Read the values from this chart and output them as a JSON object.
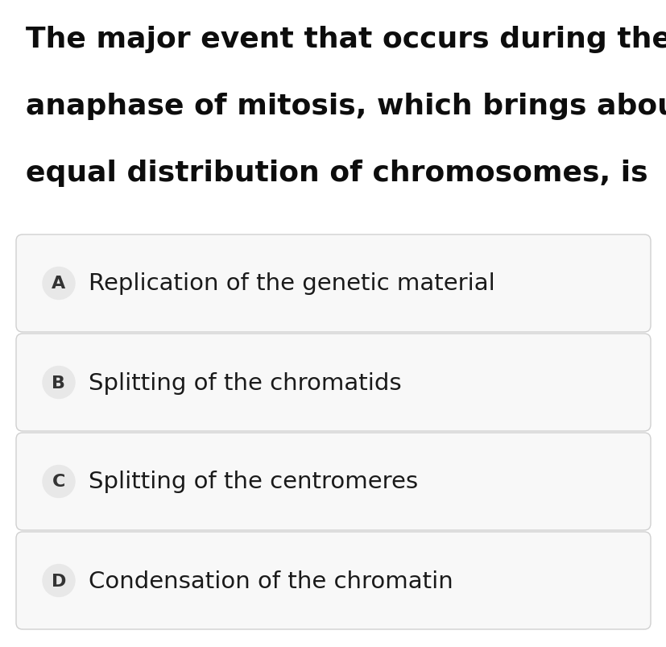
{
  "question_lines": [
    "The major event that occurs during the",
    "anaphase of mitosis, which brings about the",
    "equal distribution of chromosomes, is"
  ],
  "options": [
    {
      "letter": "A",
      "text": "Replication of the genetic material"
    },
    {
      "letter": "B",
      "text": "Splitting of the chromatids"
    },
    {
      "letter": "C",
      "text": "Splitting of the centromeres"
    },
    {
      "letter": "D",
      "text": "Condensation of the chromatin"
    }
  ],
  "background_color": "#ffffff",
  "question_font_size": 26,
  "option_font_size": 21,
  "letter_font_size": 16,
  "question_text_color": "#0d0d0d",
  "option_text_color": "#1a1a1a",
  "letter_bg_color": "#e8e8e8",
  "letter_text_color": "#333333",
  "box_edge_color": "#d0d0d0",
  "box_face_color": "#f8f8f8",
  "fig_width": 8.28,
  "fig_height": 8.04,
  "dpi": 100
}
